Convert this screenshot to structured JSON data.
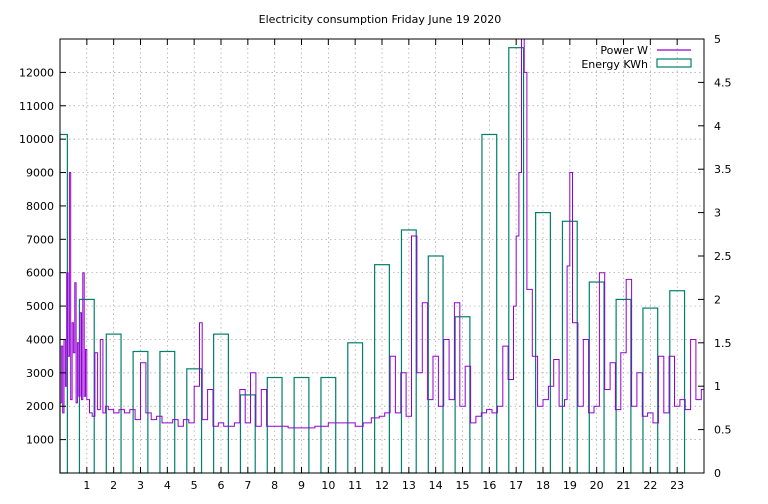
{
  "chart_data": {
    "type": "bar",
    "title": "Electricity consumption Friday June 19 2020",
    "xlabel": "",
    "ylabel": "",
    "y2label": "",
    "grid": true,
    "legend_position": "top-right",
    "x_ticks": [
      1,
      2,
      3,
      4,
      5,
      6,
      7,
      8,
      9,
      10,
      11,
      12,
      13,
      14,
      15,
      16,
      17,
      18,
      19,
      20,
      21,
      22,
      23
    ],
    "xlim": [
      0,
      24
    ],
    "ylim": [
      0,
      13000
    ],
    "y_ticks": [
      1000,
      2000,
      3000,
      4000,
      5000,
      6000,
      7000,
      8000,
      9000,
      10000,
      11000,
      12000
    ],
    "y2lim": [
      0,
      5
    ],
    "y2_ticks": [
      "0",
      "0.5",
      "1",
      "1.5",
      "2",
      "2.5",
      "3",
      "3.5",
      "4",
      "4.5",
      "5"
    ],
    "series": [
      {
        "name": "Energy KWh",
        "axis": "y2",
        "kind": "bar",
        "color": "#00806a",
        "x": [
          0,
          1,
          2,
          3,
          4,
          5,
          6,
          7,
          8,
          9,
          10,
          11,
          12,
          13,
          14,
          15,
          16,
          17,
          18,
          19,
          20,
          21,
          22,
          23
        ],
        "values": [
          3.9,
          2.0,
          1.6,
          1.4,
          1.4,
          1.2,
          1.6,
          0.9,
          1.1,
          1.1,
          1.1,
          1.5,
          2.4,
          2.8,
          2.5,
          1.8,
          3.9,
          4.9,
          3.0,
          2.9,
          2.2,
          2.0,
          1.9,
          2.1
        ]
      },
      {
        "name": "Power W",
        "axis": "y",
        "kind": "line",
        "color": "#9400d3",
        "x": [
          0.0,
          0.05,
          0.1,
          0.15,
          0.2,
          0.25,
          0.3,
          0.35,
          0.4,
          0.45,
          0.5,
          0.55,
          0.6,
          0.65,
          0.7,
          0.75,
          0.8,
          0.85,
          0.9,
          0.95,
          1.0,
          1.1,
          1.2,
          1.3,
          1.4,
          1.5,
          1.6,
          1.7,
          1.8,
          2.0,
          2.2,
          2.4,
          2.6,
          2.8,
          3.0,
          3.2,
          3.4,
          3.6,
          3.8,
          4.0,
          4.2,
          4.4,
          4.6,
          4.8,
          5.0,
          5.2,
          5.3,
          5.5,
          5.7,
          5.9,
          6.1,
          6.3,
          6.5,
          6.7,
          6.9,
          7.1,
          7.3,
          7.5,
          7.7,
          8.0,
          8.5,
          9.0,
          9.5,
          10.0,
          10.5,
          11.0,
          11.3,
          11.6,
          11.9,
          12.1,
          12.3,
          12.5,
          12.7,
          12.9,
          13.1,
          13.3,
          13.5,
          13.7,
          13.9,
          14.1,
          14.3,
          14.5,
          14.7,
          14.9,
          15.1,
          15.3,
          15.5,
          15.7,
          15.9,
          16.1,
          16.3,
          16.5,
          16.7,
          16.9,
          17.0,
          17.1,
          17.2,
          17.3,
          17.4,
          17.6,
          17.8,
          18.0,
          18.2,
          18.4,
          18.6,
          18.8,
          18.9,
          19.0,
          19.1,
          19.3,
          19.5,
          19.7,
          19.9,
          20.1,
          20.3,
          20.5,
          20.7,
          20.9,
          21.1,
          21.3,
          21.5,
          21.7,
          21.9,
          22.1,
          22.3,
          22.5,
          22.7,
          22.9,
          23.1,
          23.3,
          23.5,
          23.7,
          23.9
        ],
        "values": [
          2100,
          3800,
          1800,
          4000,
          2600,
          6000,
          3500,
          9000,
          2200,
          4500,
          3600,
          5700,
          2100,
          3900,
          2300,
          4800,
          2200,
          6000,
          2300,
          3700,
          2200,
          1800,
          1700,
          3600,
          1900,
          4000,
          1800,
          2000,
          1900,
          1800,
          1900,
          1800,
          1900,
          1600,
          3300,
          1800,
          1600,
          1700,
          1500,
          1500,
          1600,
          1400,
          1600,
          1500,
          2600,
          4500,
          1600,
          2500,
          1400,
          1500,
          1400,
          1400,
          1500,
          2500,
          1500,
          3000,
          1400,
          2500,
          1400,
          1400,
          1350,
          1350,
          1400,
          1500,
          1500,
          1400,
          1500,
          1650,
          1700,
          1800,
          3500,
          1800,
          3000,
          1700,
          7100,
          3000,
          5100,
          2200,
          3500,
          2000,
          4000,
          2200,
          5100,
          2000,
          3200,
          1500,
          1700,
          1800,
          1900,
          1800,
          2000,
          3800,
          2800,
          5000,
          7100,
          9000,
          13000,
          12000,
          5500,
          3500,
          2000,
          2200,
          2600,
          3400,
          2000,
          2200,
          6200,
          9000,
          4500,
          2000,
          4000,
          1800,
          2000,
          6000,
          2500,
          3300,
          1900,
          3600,
          5800,
          2000,
          3000,
          1700,
          1800,
          1500,
          3500,
          1800,
          3500,
          2000,
          2200,
          1900,
          4000,
          2200,
          2500
        ]
      }
    ]
  }
}
